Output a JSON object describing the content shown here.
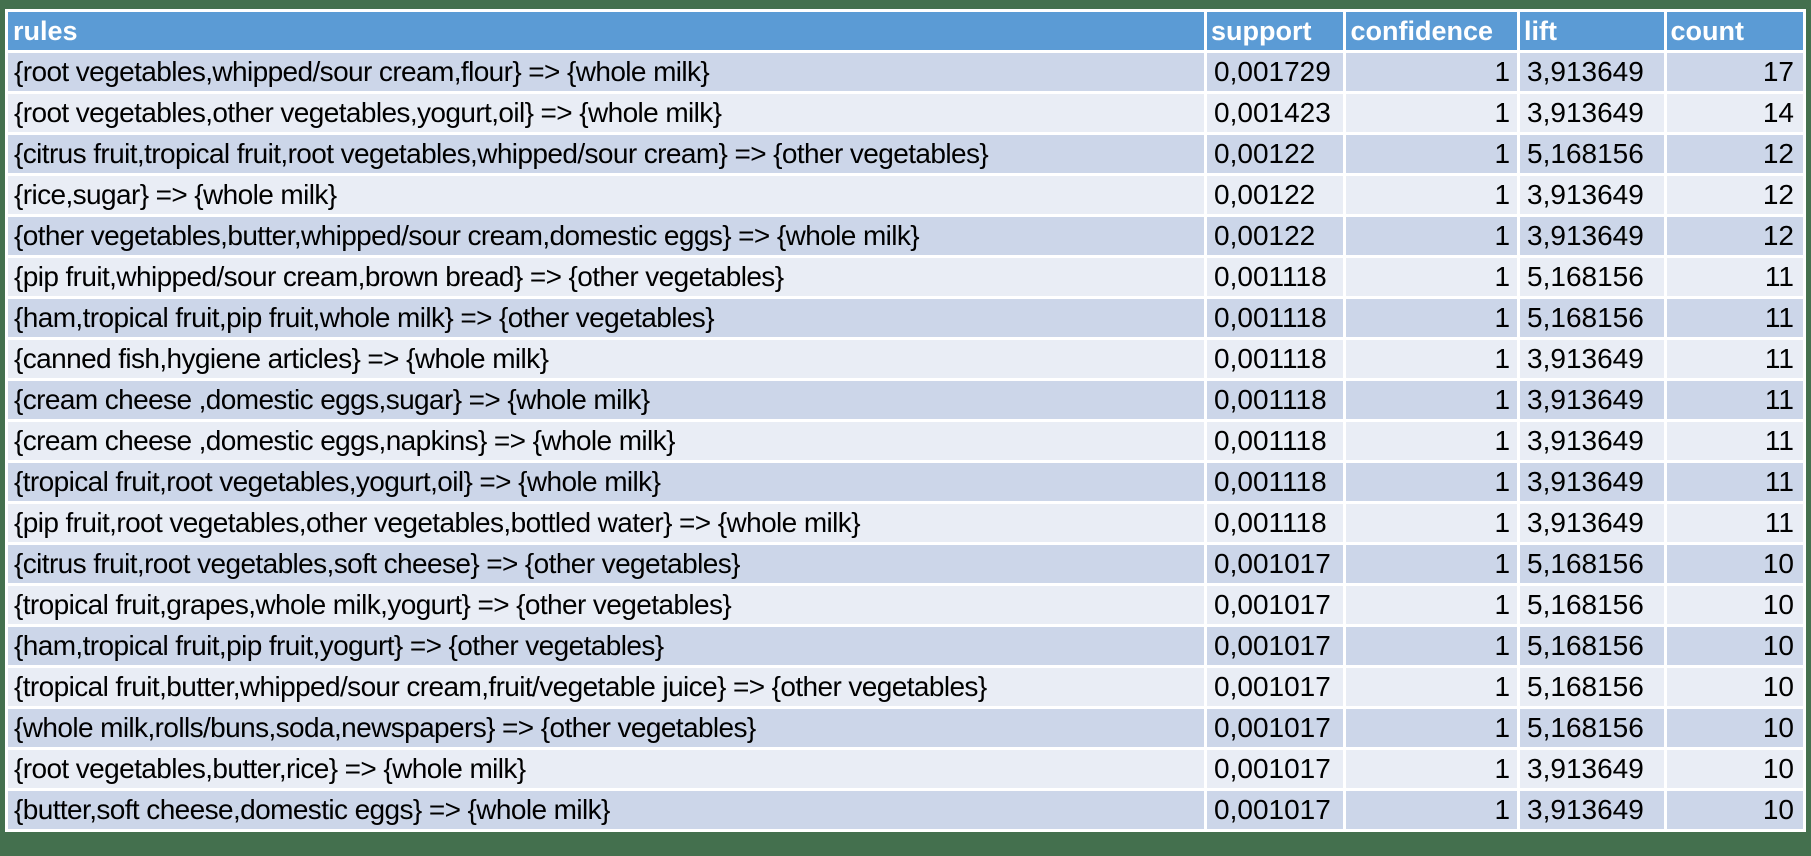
{
  "chart_data": {
    "type": "table",
    "title": "",
    "columns": [
      "rules",
      "support",
      "confidence",
      "lift",
      "count"
    ],
    "rows": [
      [
        "{root vegetables,whipped/sour cream,flour} => {whole milk}",
        "0,001729",
        "1",
        "3,913649",
        "17"
      ],
      [
        "{root vegetables,other vegetables,yogurt,oil} => {whole milk}",
        "0,001423",
        "1",
        "3,913649",
        "14"
      ],
      [
        "{citrus fruit,tropical fruit,root vegetables,whipped/sour cream} => {other vegetables}",
        "0,00122",
        "1",
        "5,168156",
        "12"
      ],
      [
        "{rice,sugar} => {whole milk}",
        "0,00122",
        "1",
        "3,913649",
        "12"
      ],
      [
        "{other vegetables,butter,whipped/sour cream,domestic eggs} => {whole milk}",
        "0,00122",
        "1",
        "3,913649",
        "12"
      ],
      [
        "{pip fruit,whipped/sour cream,brown bread} => {other vegetables}",
        "0,001118",
        "1",
        "5,168156",
        "11"
      ],
      [
        "{ham,tropical fruit,pip fruit,whole milk} => {other vegetables}",
        "0,001118",
        "1",
        "5,168156",
        "11"
      ],
      [
        "{canned fish,hygiene articles} => {whole milk}",
        "0,001118",
        "1",
        "3,913649",
        "11"
      ],
      [
        "{cream cheese ,domestic eggs,sugar} => {whole milk}",
        "0,001118",
        "1",
        "3,913649",
        "11"
      ],
      [
        "{cream cheese ,domestic eggs,napkins} => {whole milk}",
        "0,001118",
        "1",
        "3,913649",
        "11"
      ],
      [
        "{tropical fruit,root vegetables,yogurt,oil} => {whole milk}",
        "0,001118",
        "1",
        "3,913649",
        "11"
      ],
      [
        "{pip fruit,root vegetables,other vegetables,bottled water} => {whole milk}",
        "0,001118",
        "1",
        "3,913649",
        "11"
      ],
      [
        "{citrus fruit,root vegetables,soft cheese} => {other vegetables}",
        "0,001017",
        "1",
        "5,168156",
        "10"
      ],
      [
        "{tropical fruit,grapes,whole milk,yogurt} => {other vegetables}",
        "0,001017",
        "1",
        "5,168156",
        "10"
      ],
      [
        "{ham,tropical fruit,pip fruit,yogurt} => {other vegetables}",
        "0,001017",
        "1",
        "5,168156",
        "10"
      ],
      [
        "{tropical fruit,butter,whipped/sour cream,fruit/vegetable juice} => {other vegetables}",
        "0,001017",
        "1",
        "5,168156",
        "10"
      ],
      [
        "{whole milk,rolls/buns,soda,newspapers} => {other vegetables}",
        "0,001017",
        "1",
        "5,168156",
        "10"
      ],
      [
        "{root vegetables,butter,rice} => {whole milk}",
        "0,001017",
        "1",
        "3,913649",
        "10"
      ],
      [
        "{butter,soft cheese,domestic eggs} => {whole milk}",
        "0,001017",
        "1",
        "3,913649",
        "10"
      ]
    ],
    "layout": {
      "legend": "none",
      "grid": "white-separators",
      "banded_rows": true
    }
  },
  "colors": {
    "header_fill": "#5b9bd5",
    "header_text": "#ffffff",
    "band_dark": "#ccd6e9",
    "band_light": "#e9edf5",
    "grid_lines": "#ffffff",
    "outer_border": "#44704e",
    "body_text": "#000000"
  }
}
